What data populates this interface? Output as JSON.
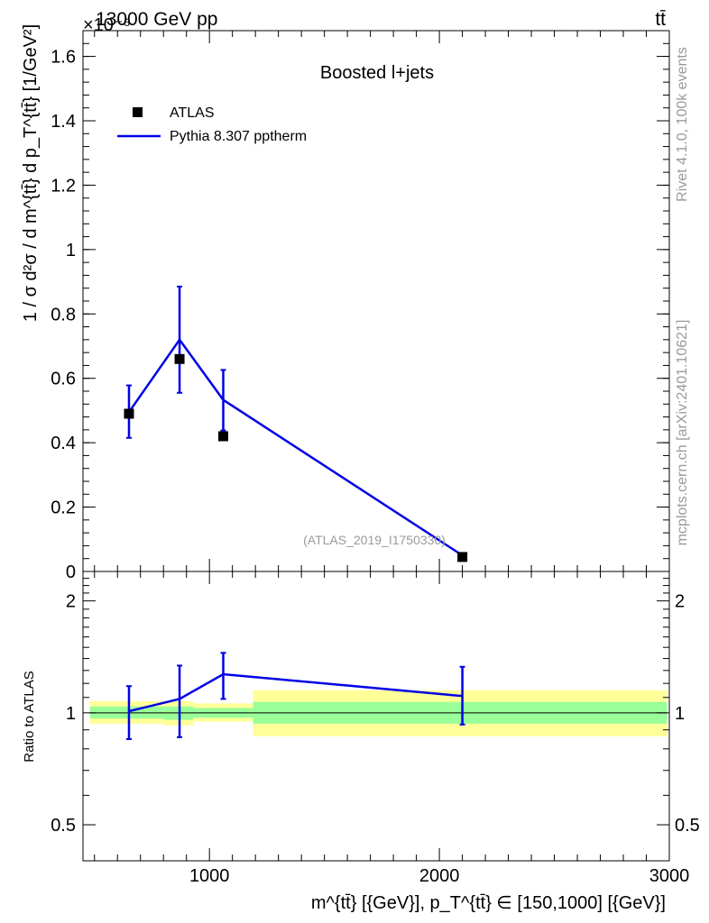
{
  "header": {
    "left": "13000 GeV pp",
    "right": "tt̄",
    "exponent": "×10⁻⁶"
  },
  "side_text": {
    "rivet": "Rivet 4.1.0,  100k events",
    "mcplots": "mcplots.cern.ch [arXiv:2401.10621]"
  },
  "chart_data": [
    {
      "type": "line",
      "title": "Boosted l+jets",
      "xlabel": "m^{tt̄} [{GeV}], p_T^{tt̄} ∈ [150,1000] [{GeV}]",
      "ylabel": "1 / σ d²σ / d m^{tt̄} d p_T^{tt̄} [1/GeV²]",
      "y_scale_factor": "1e-6",
      "xlim": [
        450,
        3000
      ],
      "ylim": [
        0,
        1.68
      ],
      "yticks": [
        0,
        0.2,
        0.4,
        0.6,
        0.8,
        1,
        1.2,
        1.4,
        1.6
      ],
      "ytick_labels": [
        "0",
        "0.2",
        "0.4",
        "0.6",
        "0.8",
        "1",
        "1.2",
        "1.4",
        "1.6"
      ],
      "legend": [
        "ATLAS",
        "Pythia 8.307 pptherm"
      ],
      "watermark": "(ATLAS_2019_I1750330)",
      "series": [
        {
          "name": "ATLAS",
          "x": [
            650,
            870,
            1060,
            2100
          ],
          "y": [
            0.49,
            0.66,
            0.42,
            0.045
          ]
        },
        {
          "name": "Pythia 8.307 pptherm",
          "x": [
            650,
            870,
            1060,
            2100
          ],
          "y": [
            0.495,
            0.72,
            0.533,
            0.05
          ],
          "yerr_low": [
            0.08,
            0.165,
            0.095,
            0.006
          ],
          "yerr_high": [
            0.083,
            0.165,
            0.093,
            0.006
          ]
        }
      ]
    },
    {
      "type": "line",
      "ylabel": "Ratio to ATLAS",
      "xlim": [
        450,
        3000
      ],
      "ylim": [
        0.4,
        2.4
      ],
      "y_scale": "log",
      "yticks": [
        0.5,
        1,
        2
      ],
      "ytick_labels": [
        "0.5",
        "1",
        "2"
      ],
      "xticks": [
        1000,
        2000,
        3000
      ],
      "xtick_labels": [
        "1000",
        "2000",
        "3000"
      ],
      "bands": [
        {
          "x0": 480,
          "x1": 800,
          "green": [
            0.965,
            1.04
          ],
          "yellow": [
            0.935,
            1.075
          ]
        },
        {
          "x0": 800,
          "x1": 930,
          "green": [
            0.958,
            1.04
          ],
          "yellow": [
            0.925,
            1.075
          ]
        },
        {
          "x0": 930,
          "x1": 1190,
          "green": [
            0.97,
            1.03
          ],
          "yellow": [
            0.947,
            1.06
          ]
        },
        {
          "x0": 1190,
          "x1": 2990,
          "green": [
            0.935,
            1.07
          ],
          "yellow": [
            0.865,
            1.15
          ]
        }
      ],
      "series": [
        {
          "name": "Pythia 8.307 pptherm / ATLAS",
          "x": [
            650,
            870,
            1060,
            2100
          ],
          "y": [
            1.01,
            1.09,
            1.27,
            1.11
          ],
          "yerr_low": [
            0.16,
            0.23,
            0.18,
            0.18
          ],
          "yerr_high": [
            0.17,
            0.25,
            0.18,
            0.22
          ]
        }
      ]
    }
  ]
}
